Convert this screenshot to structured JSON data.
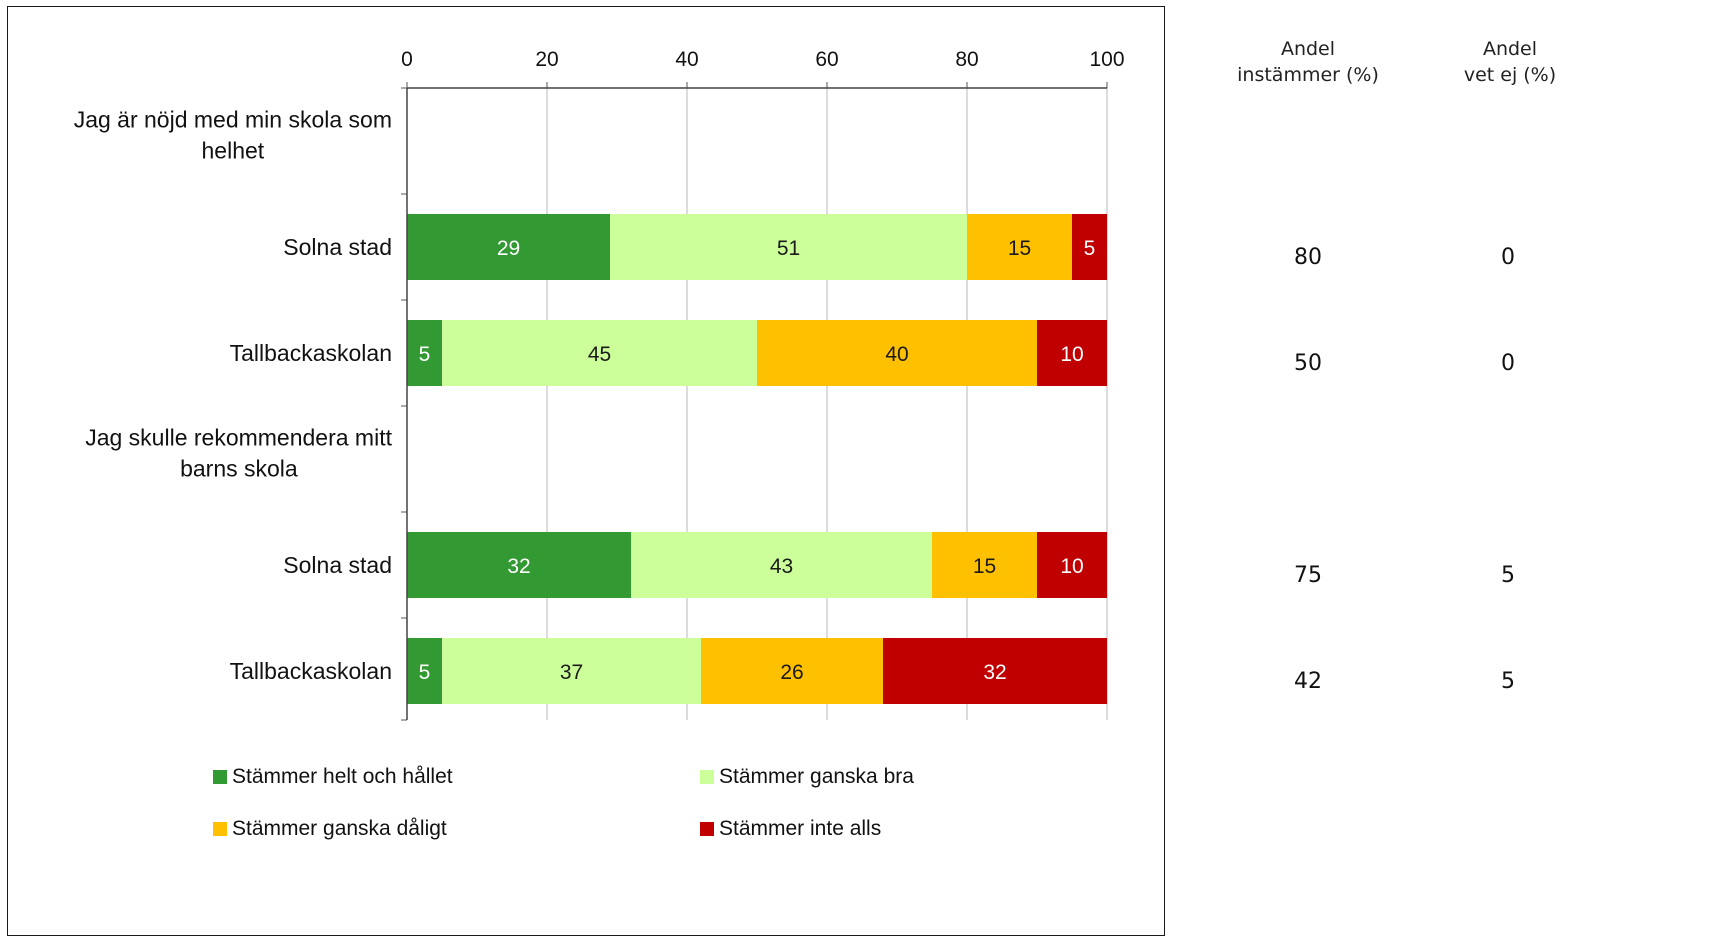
{
  "chart_data": {
    "type": "bar",
    "orientation": "horizontal",
    "stacked": true,
    "xlim": [
      0,
      100
    ],
    "xticks": [
      0,
      20,
      40,
      60,
      80,
      100
    ],
    "grid": true,
    "legend_position": "bottom",
    "groups": [
      {
        "title": "Jag är nöjd med min skola som helhet",
        "rows": [
          {
            "label": "Solna stad",
            "values": [
              29,
              51,
              15,
              5
            ],
            "share_agree": "80",
            "share_dont_know": "0"
          },
          {
            "label": "Tallbackaskolan",
            "values": [
              5,
              45,
              40,
              10
            ],
            "share_agree": "50",
            "share_dont_know": "0"
          }
        ]
      },
      {
        "title": "Jag skulle rekommendera mitt barns skola",
        "rows": [
          {
            "label": "Solna stad",
            "values": [
              32,
              43,
              15,
              10
            ],
            "share_agree": "75",
            "share_dont_know": "5"
          },
          {
            "label": "Tallbackaskolan",
            "values": [
              5,
              37,
              26,
              32
            ],
            "share_agree": "42",
            "share_dont_know": "5"
          }
        ]
      }
    ],
    "series": [
      {
        "name": "Stämmer helt och hållet",
        "color": "#339933",
        "label_color": "#ffffff"
      },
      {
        "name": "Stämmer ganska bra",
        "color": "#ccff99",
        "label_color": "#1a1a1a"
      },
      {
        "name": "Stämmer ganska dåligt",
        "color": "#ffc000",
        "label_color": "#1a1a1a"
      },
      {
        "name": "Stämmer inte alls",
        "color": "#c00000",
        "label_color": "#ffffff"
      }
    ]
  },
  "side_table": {
    "header_agree": [
      "Andel",
      "instämmer (%)"
    ],
    "header_dont_know": [
      "Andel",
      "vet ej (%)"
    ]
  }
}
